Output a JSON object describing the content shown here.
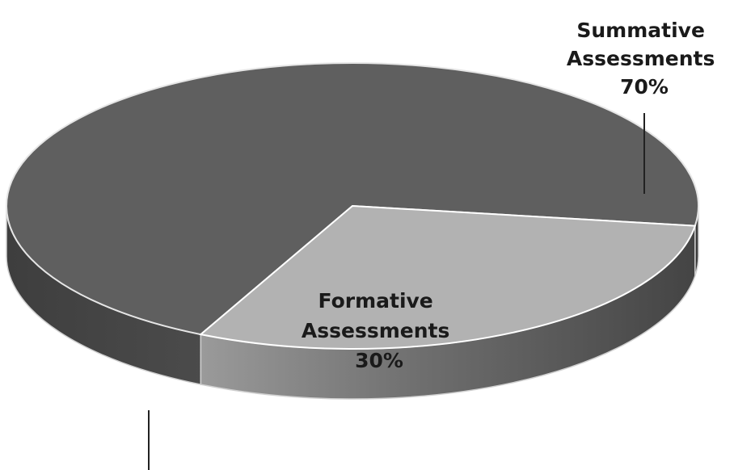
{
  "chart_data": {
    "type": "pie",
    "title": "",
    "categories": [
      "Summative Assessments",
      "Formative Assessments"
    ],
    "values": [
      70,
      30
    ],
    "labels": [
      {
        "line1": "Summative",
        "line2": "Assessments",
        "pct": "70%"
      },
      {
        "line1": "Formative",
        "line2": "Assessments",
        "pct": "30%"
      }
    ],
    "colors": {
      "summative_top": "#5f5f5f",
      "formative_top": "#b2b2b2",
      "summative_side": "#4a4a4a",
      "formative_side": "#8c8c8c",
      "leader": "#222222"
    },
    "style": "3d-exploded-none"
  }
}
